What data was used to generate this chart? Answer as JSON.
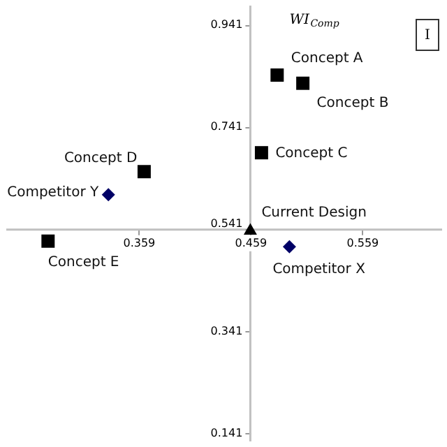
{
  "chart_data": {
    "type": "scatter",
    "ylabel": "WI$_{Comp}$",
    "xlim": [
      0.24,
      0.63
    ],
    "ylim": [
      0.125,
      0.978
    ],
    "xticks": [
      0.359,
      0.459,
      0.559
    ],
    "yticks": [
      0.141,
      0.341,
      0.541,
      0.741,
      0.941
    ],
    "grid": false,
    "series": [
      {
        "marker": "square",
        "color": "#000000",
        "x": [
          0.483,
          0.506,
          0.469,
          0.364,
          0.278
        ],
        "values": [
          0.842,
          0.826,
          0.69,
          0.653,
          0.517
        ]
      },
      {
        "marker": "diamond",
        "color": "#000066",
        "x": [
          0.332,
          0.494
        ],
        "values": [
          0.608,
          0.506
        ]
      },
      {
        "marker": "triangle",
        "color": "#000000",
        "x": [
          0.459
        ],
        "values": [
          0.541
        ]
      }
    ],
    "annotations": [
      {
        "text": "Concept A",
        "x": 0.483,
        "y": 0.842
      },
      {
        "text": "Concept B",
        "x": 0.506,
        "y": 0.826
      },
      {
        "text": "Concept C",
        "x": 0.469,
        "y": 0.69
      },
      {
        "text": "Concept D",
        "x": 0.364,
        "y": 0.653
      },
      {
        "text": "Competitor Y",
        "x": 0.332,
        "y": 0.608
      },
      {
        "text": "Concept E",
        "x": 0.278,
        "y": 0.517
      },
      {
        "text": "Current Design",
        "x": 0.459,
        "y": 0.541
      },
      {
        "text": "Competitor X",
        "x": 0.494,
        "y": 0.506
      },
      "I"
    ]
  }
}
